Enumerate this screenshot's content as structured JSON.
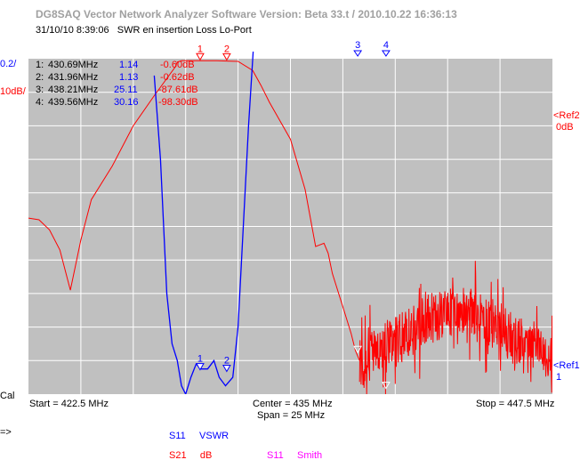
{
  "app": {
    "title": "DG8SAQ Vector Network Analyzer Software   Version:  Beta 33.t / 2010.10.22 16:36:13",
    "timestamp": "31/10/10   8:39:06",
    "description": "SWR en insertion Loss Lo-Port"
  },
  "scale": {
    "left_blue": "0.2/",
    "left_red": "10dB/",
    "ref2_label": "<Ref2",
    "ref2_value": "0dB",
    "ref1_label": "<Ref1",
    "ref1_value": "1",
    "cal": "Cal",
    "prompt": "=>"
  },
  "freq": {
    "start": "Start = 422.5 MHz",
    "center": "Center = 435 MHz",
    "span": "Span = 25 MHz",
    "stop": "Stop = 447.5 MHz"
  },
  "markers_table": [
    {
      "id": "1:",
      "freq": "430.69MHz",
      "vswr": "1.14",
      "db": "-0.60dB"
    },
    {
      "id": "2:",
      "freq": "431.96MHz",
      "vswr": "1.13",
      "db": "-0.62dB"
    },
    {
      "id": "3:",
      "freq": "438.21MHz",
      "vswr": "25.11",
      "db": "-87.61dB"
    },
    {
      "id": "4:",
      "freq": "439.56MHz",
      "vswr": "30.16",
      "db": "-98.30dB"
    }
  ],
  "legend": [
    {
      "param": "S11",
      "format": "VSWR",
      "color": "#0000ff"
    },
    {
      "param": "S21",
      "format": "dB",
      "color": "#ff0000"
    },
    {
      "param": "S11",
      "format": "Smith",
      "color": "#ff00ff"
    }
  ],
  "chart_data": {
    "type": "line",
    "xlim": [
      422.5,
      447.5
    ],
    "grid": true,
    "x_divisions": 10,
    "y_divisions": 10,
    "colors": {
      "s21": "#ff0000",
      "vswr": "#0000ff",
      "grid": "#ffffff",
      "background": "#c0c0c0",
      "marker": "#ffffff"
    },
    "series": [
      {
        "key": "s21",
        "ylim": [
          -100,
          0
        ],
        "x": [
          422.5,
          423.0,
          423.5,
          424.0,
          424.5,
          425.0,
          425.5,
          426.5,
          427.5,
          428.5,
          429.5,
          429.6,
          429.8,
          430.2,
          430.7,
          431.5,
          432.5,
          433.2,
          433.6,
          434.0,
          435.0,
          435.7,
          436.2,
          436.6,
          436.8,
          437.0,
          437.3,
          437.6,
          437.9,
          438.1,
          438.3
        ],
        "y": [
          -47.5,
          -48.0,
          -51.0,
          -57.0,
          -69.0,
          -54.0,
          -42.0,
          -32.0,
          -20.0,
          -11.0,
          -2.5,
          -1.0,
          -0.6,
          -0.6,
          -0.6,
          -0.6,
          -0.8,
          -3.5,
          -8.0,
          -13.0,
          -24.0,
          -39.0,
          -56.0,
          -55.0,
          -58.0,
          -64.0,
          -70.0,
          -76.0,
          -82.0,
          -87.0,
          -90.0
        ],
        "noise_from": 438.3,
        "noise_envelope": {
          "x": [
            438.3,
            439.0,
            440.0,
            441.0,
            442.0,
            443.0,
            444.0,
            445.0,
            446.0,
            447.5
          ],
          "y": [
            -92.0,
            -87.0,
            -85.0,
            -80.0,
            -77.0,
            -75.0,
            -77.0,
            -80.0,
            -85.0,
            -88.0
          ]
        }
      },
      {
        "key": "vswr",
        "ylim": [
          1.0,
          3.0
        ],
        "x": [
          428.5,
          428.8,
          429.1,
          429.35,
          429.6,
          429.8,
          430.0,
          430.25,
          430.5,
          430.75,
          431.05,
          431.35,
          431.6,
          431.9,
          432.25,
          432.5,
          432.75,
          433.0,
          433.2,
          433.3
        ],
        "y": [
          2.9,
          2.4,
          1.6,
          1.3,
          1.2,
          1.05,
          1.0,
          1.1,
          1.18,
          1.15,
          1.15,
          1.2,
          1.1,
          1.05,
          1.1,
          1.4,
          2.0,
          2.6,
          3.0,
          3.2
        ]
      }
    ],
    "markers": [
      {
        "label": "1",
        "x": 430.69,
        "series": "s21",
        "y": -0.6
      },
      {
        "label": "2",
        "x": 431.96,
        "series": "s21",
        "y": -0.62
      },
      {
        "label": "1",
        "x": 430.69,
        "series": "vswr",
        "y": 1.14
      },
      {
        "label": "2",
        "x": 431.96,
        "series": "vswr",
        "y": 1.13
      },
      {
        "label": "3",
        "x": 438.21,
        "series": "s21",
        "y": -87.61
      },
      {
        "label": "4",
        "x": 439.56,
        "series": "s21",
        "y": -98.3
      }
    ]
  }
}
